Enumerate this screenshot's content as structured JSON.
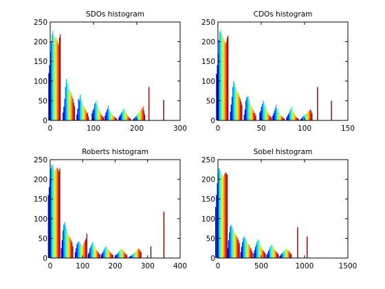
{
  "chart_data": [
    {
      "type": "bar",
      "title": "SDOs histogram",
      "xlabel": "",
      "ylabel": "",
      "xlim": [
        0,
        300
      ],
      "ylim": [
        0,
        250
      ],
      "xticks": [
        "0",
        "100",
        "200",
        "300"
      ],
      "yticks": [
        "0",
        "50",
        "100",
        "150",
        "200",
        "250"
      ],
      "grid": false,
      "legend": "none",
      "groups": [
        {
          "x": 10,
          "values": [
            120,
            140,
            175,
            200,
            220,
            228,
            215,
            205,
            210,
            212,
            205,
            198,
            192,
            210,
            218
          ]
        },
        {
          "x": 43,
          "values": [
            20,
            35,
            55,
            85,
            105,
            95,
            92,
            80,
            78,
            72,
            70,
            62,
            55,
            45,
            36
          ]
        },
        {
          "x": 75,
          "values": [
            15,
            30,
            55,
            50,
            65,
            55,
            48,
            40,
            38,
            35,
            30,
            25,
            20,
            18,
            10
          ]
        },
        {
          "x": 110,
          "values": [
            18,
            25,
            30,
            42,
            45,
            50,
            40,
            35,
            30,
            25,
            20,
            15,
            12,
            10,
            8
          ]
        },
        {
          "x": 140,
          "values": [
            12,
            20,
            25,
            30,
            38,
            28,
            22,
            20,
            18,
            15,
            12,
            10,
            8,
            6,
            5
          ]
        },
        {
          "x": 172,
          "values": [
            8,
            12,
            15,
            20,
            22,
            28,
            30,
            25,
            20,
            18,
            15,
            10,
            8,
            6,
            5
          ]
        },
        {
          "x": 205,
          "values": [
            3,
            5,
            8,
            10,
            12,
            15,
            18,
            20,
            22,
            25,
            28,
            30,
            35,
            25,
            15
          ]
        }
      ],
      "spikes": [
        {
          "x": 228,
          "value": 85
        },
        {
          "x": 262,
          "value": 52
        }
      ]
    },
    {
      "type": "bar",
      "title": "CDOs histogram",
      "xlabel": "",
      "ylabel": "",
      "xlim": [
        0,
        150
      ],
      "ylim": [
        0,
        250
      ],
      "xticks": [
        "0",
        "50",
        "100",
        "150"
      ],
      "yticks": [
        "0",
        "50",
        "100",
        "150",
        "200",
        "250"
      ],
      "grid": false,
      "legend": "none",
      "groups": [
        {
          "x": 5,
          "values": [
            118,
            140,
            170,
            205,
            225,
            230,
            220,
            215,
            212,
            205,
            200,
            195,
            200,
            210,
            215
          ]
        },
        {
          "x": 21,
          "values": [
            22,
            40,
            60,
            85,
            100,
            95,
            85,
            80,
            75,
            72,
            68,
            60,
            55,
            48,
            40
          ]
        },
        {
          "x": 37,
          "values": [
            15,
            28,
            50,
            58,
            62,
            60,
            52,
            45,
            40,
            35,
            30,
            25,
            20,
            18,
            12
          ]
        },
        {
          "x": 55,
          "values": [
            20,
            25,
            35,
            42,
            50,
            45,
            38,
            35,
            30,
            25,
            20,
            15,
            12,
            10,
            8
          ]
        },
        {
          "x": 70,
          "values": [
            12,
            18,
            25,
            32,
            40,
            30,
            28,
            22,
            20,
            15,
            12,
            10,
            8,
            6,
            5
          ]
        },
        {
          "x": 86,
          "values": [
            8,
            12,
            16,
            20,
            25,
            30,
            35,
            28,
            22,
            20,
            15,
            10,
            8,
            6,
            5
          ]
        },
        {
          "x": 102,
          "values": [
            3,
            5,
            8,
            10,
            12,
            14,
            16,
            18,
            20,
            22,
            24,
            26,
            28,
            24,
            18
          ]
        }
      ],
      "spikes": [
        {
          "x": 115,
          "value": 85
        },
        {
          "x": 131,
          "value": 50
        }
      ]
    },
    {
      "type": "bar",
      "title": "Roberts histogram",
      "xlabel": "",
      "ylabel": "",
      "xlim": [
        0,
        400
      ],
      "ylim": [
        0,
        250
      ],
      "xticks": [
        "0",
        "100",
        "200",
        "300",
        "400"
      ],
      "yticks": [
        "0",
        "50",
        "100",
        "150",
        "200",
        "250"
      ],
      "grid": false,
      "legend": "none",
      "groups": [
        {
          "x": 12,
          "values": [
            160,
            180,
            200,
            228,
            235,
            238,
            230,
            225,
            222,
            225,
            228,
            230,
            225,
            220,
            228
          ]
        },
        {
          "x": 52,
          "values": [
            25,
            45,
            70,
            85,
            92,
            85,
            75,
            70,
            62,
            58,
            55,
            50,
            45,
            40,
            30
          ]
        },
        {
          "x": 95,
          "values": [
            15,
            25,
            35,
            40,
            42,
            40,
            38,
            35,
            32,
            30,
            35,
            40,
            45,
            50,
            62
          ]
        },
        {
          "x": 135,
          "values": [
            10,
            15,
            25,
            30,
            35,
            40,
            38,
            32,
            28,
            25,
            20,
            18,
            15,
            12,
            10
          ]
        },
        {
          "x": 175,
          "values": [
            8,
            12,
            15,
            20,
            25,
            30,
            28,
            25,
            22,
            20,
            18,
            15,
            12,
            10,
            8
          ]
        },
        {
          "x": 218,
          "values": [
            5,
            8,
            10,
            12,
            15,
            18,
            20,
            22,
            25,
            22,
            18,
            15,
            12,
            10,
            8
          ]
        },
        {
          "x": 262,
          "values": [
            3,
            5,
            6,
            8,
            10,
            12,
            14,
            16,
            18,
            20,
            22,
            24,
            22,
            18,
            15
          ]
        }
      ],
      "spikes": [
        {
          "x": 310,
          "value": 30
        },
        {
          "x": 350,
          "value": 118
        }
      ]
    },
    {
      "type": "bar",
      "title": "Sobel histogram",
      "xlabel": "",
      "ylabel": "",
      "xlim": [
        0,
        1500
      ],
      "ylim": [
        0,
        250
      ],
      "xticks": [
        "0",
        "500",
        "1000",
        "1500"
      ],
      "yticks": [
        "0",
        "50",
        "100",
        "150",
        "200",
        "250"
      ],
      "grid": false,
      "legend": "none",
      "groups": [
        {
          "x": 40,
          "values": [
            130,
            160,
            190,
            215,
            228,
            225,
            218,
            212,
            210,
            205,
            210,
            215,
            218,
            215,
            212
          ]
        },
        {
          "x": 180,
          "values": [
            25,
            45,
            65,
            80,
            85,
            80,
            75,
            70,
            65,
            62,
            58,
            55,
            50,
            45,
            38
          ]
        },
        {
          "x": 330,
          "values": [
            15,
            28,
            40,
            50,
            55,
            52,
            48,
            44,
            40,
            38,
            35,
            30,
            25,
            20,
            15
          ]
        },
        {
          "x": 480,
          "values": [
            12,
            20,
            28,
            35,
            42,
            48,
            45,
            40,
            35,
            30,
            25,
            20,
            18,
            15,
            12
          ]
        },
        {
          "x": 630,
          "values": [
            8,
            12,
            18,
            22,
            28,
            32,
            35,
            30,
            28,
            25,
            20,
            18,
            15,
            12,
            10
          ]
        },
        {
          "x": 780,
          "values": [
            5,
            8,
            10,
            12,
            15,
            18,
            20,
            22,
            25,
            22,
            20,
            18,
            15,
            12,
            10
          ]
        }
      ],
      "spikes": [
        {
          "x": 920,
          "value": 78
        },
        {
          "x": 1030,
          "value": 55
        }
      ]
    }
  ],
  "colors": {
    "axes": "#000000",
    "background": "#ffffff",
    "colormap": [
      "#00008f",
      "#0000ff",
      "#0070ff",
      "#00dfff",
      "#50ffaf",
      "#bfff40",
      "#ffcf00",
      "#ff6000",
      "#ef0000",
      "#800000"
    ]
  }
}
